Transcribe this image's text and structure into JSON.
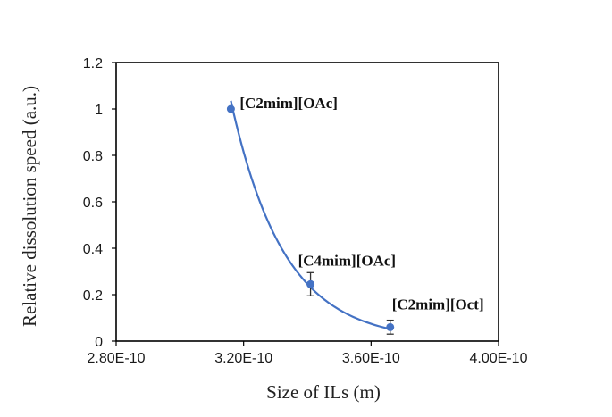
{
  "chart_data": {
    "type": "scatter",
    "xlabel": "Size of ILs (m)",
    "ylabel": "Relative dissolution speed (a.u.)",
    "xlim": [
      2.8e-10,
      4e-10
    ],
    "ylim": [
      0,
      1.2
    ],
    "x_ticks": [
      2.8e-10,
      3.2e-10,
      3.6e-10,
      4e-10
    ],
    "x_tick_labels": [
      "2.80E-10",
      "3.20E-10",
      "3.60E-10",
      "4.00E-10"
    ],
    "y_ticks": [
      0,
      0.2,
      0.4,
      0.6,
      0.8,
      1,
      1.2
    ],
    "y_tick_labels": [
      "0",
      "0.2",
      "0.4",
      "0.6",
      "0.8",
      "1",
      "1.2"
    ],
    "grid": false,
    "legend": false,
    "series": [
      {
        "points": [
          {
            "x": 3.16e-10,
            "y": 1.0,
            "error": 0,
            "label": "[C2mim][OAc]"
          },
          {
            "x": 3.41e-10,
            "y": 0.245,
            "error": 0.05,
            "label": "[C4mim][OAc]"
          },
          {
            "x": 3.66e-10,
            "y": 0.06,
            "error": 0.03,
            "label": "[C2mim][Oct]"
          }
        ]
      }
    ],
    "trendline": {
      "type": "exponential",
      "x_range": [
        3.16e-10,
        3.66e-10
      ],
      "y_range": [
        1.035,
        0.052
      ]
    },
    "colors": {
      "marker": "#4472C4",
      "trendline": "#4472C4",
      "axis": "#000000",
      "error_bar": "#333333"
    }
  }
}
